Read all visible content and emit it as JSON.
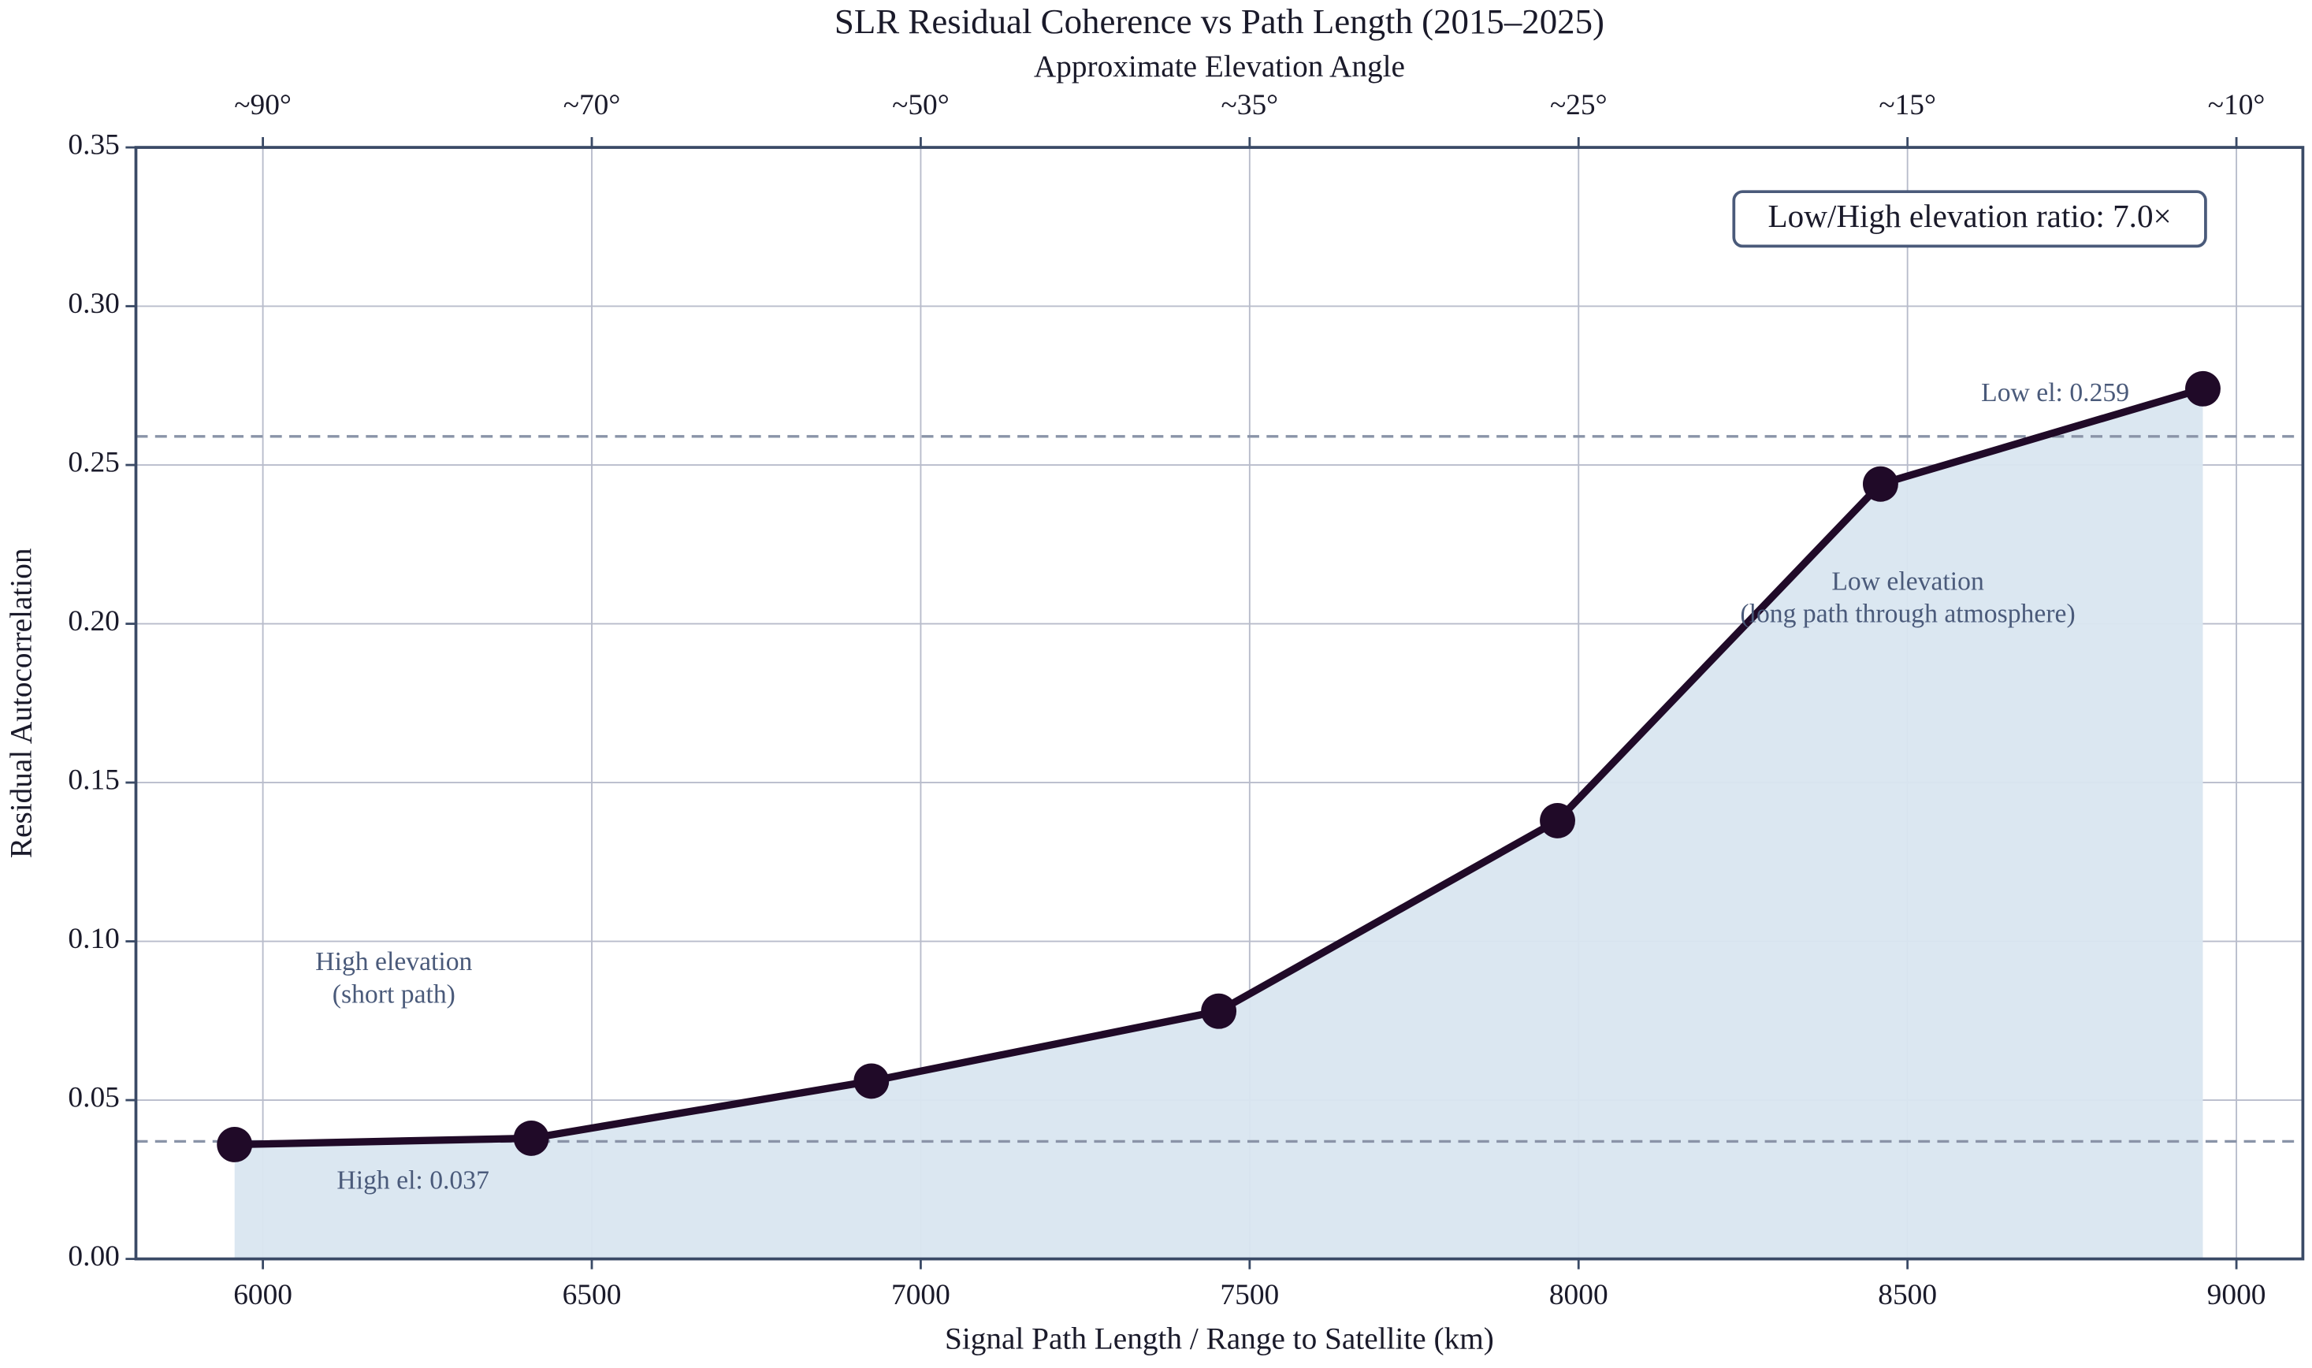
{
  "chart_data": {
    "type": "line",
    "title": "SLR Residual Coherence vs Path Length (2015–2025)",
    "x_label": "Signal Path Length / Range to Satellite (km)",
    "y_label": "Residual Autocorrelation",
    "top_axis": {
      "label": "Approximate Elevation Angle",
      "ticks": [
        {
          "value": 6000,
          "label": "~90°"
        },
        {
          "value": 6500,
          "label": "~70°"
        },
        {
          "value": 7000,
          "label": "~50°"
        },
        {
          "value": 7500,
          "label": "~35°"
        },
        {
          "value": 8000,
          "label": "~25°"
        },
        {
          "value": 8500,
          "label": "~15°"
        },
        {
          "value": 9000,
          "label": "~10°"
        }
      ]
    },
    "x": [
      5957,
      6408,
      6925,
      7453,
      7968,
      8459,
      8949
    ],
    "values": [
      0.036,
      0.038,
      0.056,
      0.078,
      0.138,
      0.244,
      0.274
    ],
    "color": "#200a28",
    "fill_color": "#d9e6f0",
    "xlim": [
      5807,
      9101
    ],
    "ylim": [
      0,
      0.35
    ],
    "xticks": [
      6000,
      6500,
      7000,
      7500,
      8000,
      8500,
      9000
    ],
    "yticks": [
      {
        "value": 0,
        "label": "0.00"
      },
      0.05,
      {
        "value": 0.1,
        "label": "0.10"
      },
      0.15,
      {
        "value": 0.2,
        "label": "0.20"
      },
      0.25,
      {
        "value": 0.3,
        "label": "0.30"
      },
      0.35
    ],
    "grid": true,
    "reference_lines": [
      {
        "value": 0.259,
        "label": "Low el: 0.259"
      },
      {
        "value": 0.037,
        "label": "High el: 0.037"
      }
    ],
    "annotations": [
      {
        "text": [
          "High elevation",
          "(short path)"
        ]
      },
      {
        "text": [
          "Low elevation",
          "(long path through atmosphere)"
        ]
      }
    ],
    "ratio_box": "Low/High elevation ratio: 7.0×"
  }
}
